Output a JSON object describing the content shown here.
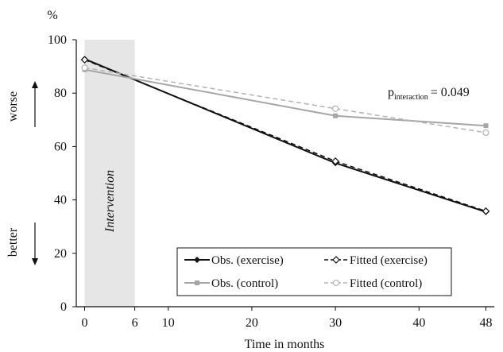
{
  "chart_data": {
    "type": "line",
    "title": "",
    "xlabel": "Time in months",
    "ylabel": "%",
    "xlim": [
      -1,
      49
    ],
    "ylim": [
      0,
      100
    ],
    "x_ticks": [
      0,
      6,
      10,
      20,
      30,
      40,
      48
    ],
    "y_ticks": [
      0,
      20,
      40,
      60,
      80,
      100
    ],
    "intervention_band": {
      "x": [
        0,
        6
      ],
      "label": "Intervention"
    },
    "annotations": {
      "worse": "worse",
      "better": "better",
      "p_prefix": "p",
      "p_sub": "interaction",
      "p_value": "= 0.049"
    },
    "legend_position": "bottom-right",
    "series": [
      {
        "name": "Obs. (exercise)",
        "color": "#111111",
        "dashed": false,
        "marker": "filled-diamond",
        "x": [
          0,
          30,
          48
        ],
        "values": [
          92.8,
          53.8,
          35.5
        ]
      },
      {
        "name": "Fitted (exercise)",
        "color": "#111111",
        "dashed": true,
        "marker": "open-diamond",
        "x": [
          0,
          30,
          48
        ],
        "values": [
          92.5,
          54.5,
          35.8
        ]
      },
      {
        "name": "Obs. (control)",
        "color": "#a6a6a6",
        "dashed": false,
        "marker": "filled-square",
        "x": [
          0,
          30,
          48
        ],
        "values": [
          88.8,
          71.5,
          67.8
        ]
      },
      {
        "name": "Fitted (control)",
        "color": "#b3b3b3",
        "dashed": true,
        "marker": "open-circle",
        "x": [
          0,
          30,
          48
        ],
        "values": [
          89.5,
          74.2,
          65.2
        ]
      }
    ]
  }
}
